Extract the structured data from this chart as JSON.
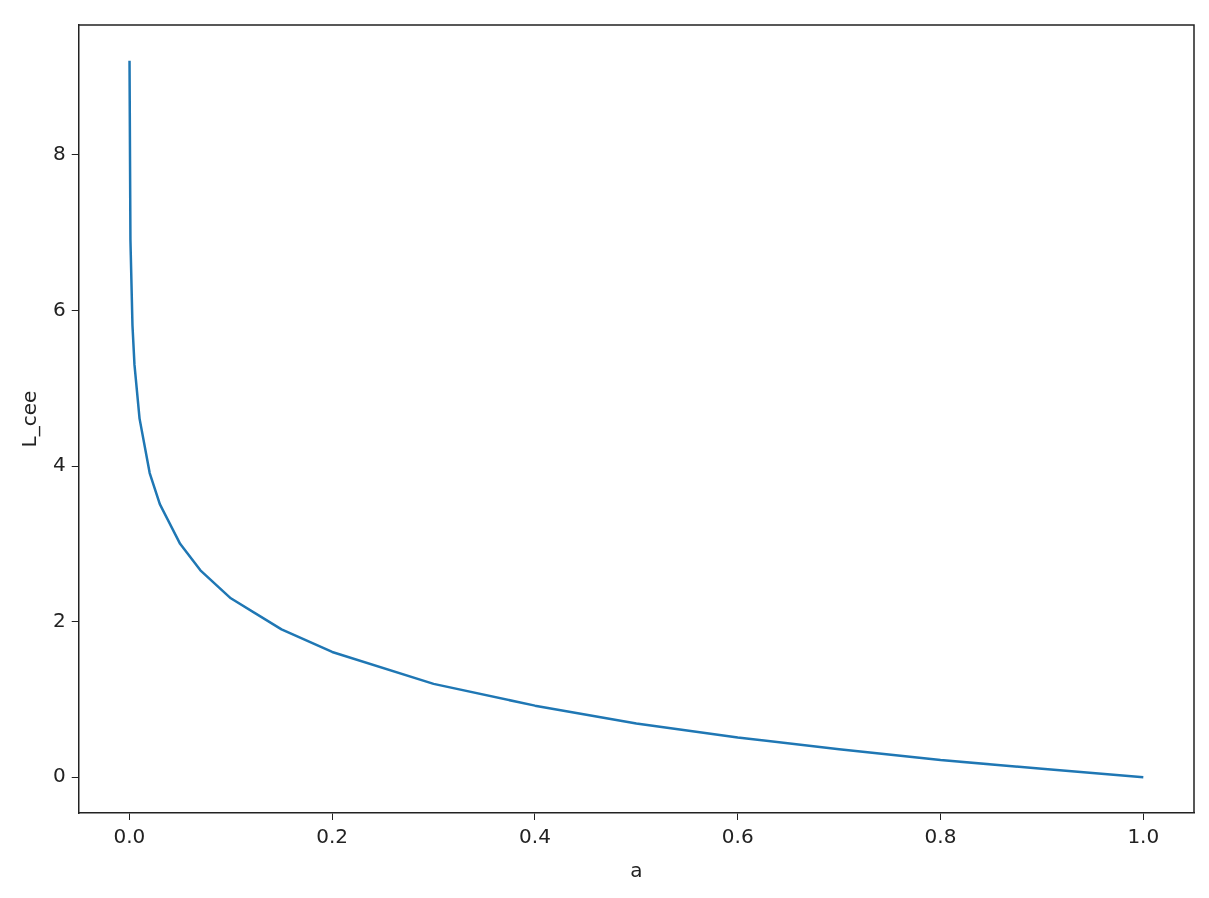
{
  "chart_data": {
    "type": "line",
    "xlabel": "a",
    "ylabel": "L_cee",
    "x": [
      0.0001,
      0.001,
      0.003,
      0.005,
      0.01,
      0.02,
      0.03,
      0.05,
      0.07,
      0.1,
      0.15,
      0.2,
      0.3,
      0.4,
      0.5,
      0.6,
      0.7,
      0.8,
      0.9,
      1.0
    ],
    "series": [
      {
        "color": "#1f77b4",
        "values": [
          9.21,
          6.91,
          5.81,
          5.3,
          4.61,
          3.91,
          3.51,
          3.0,
          2.66,
          2.3,
          1.9,
          1.61,
          1.2,
          0.92,
          0.69,
          0.51,
          0.36,
          0.22,
          0.11,
          0
        ]
      }
    ],
    "xlim": [
      -0.05,
      1.05
    ],
    "ylim": [
      -0.46,
      9.67
    ],
    "xticks": [
      {
        "value": 0,
        "label": "0.0"
      },
      {
        "value": 0.2,
        "label": "0.2"
      },
      {
        "value": 0.4,
        "label": "0.4"
      },
      {
        "value": 0.6,
        "label": "0.6"
      },
      {
        "value": 0.8,
        "label": "0.8"
      },
      {
        "value": 1,
        "label": "1.0"
      }
    ],
    "yticks": [
      0,
      2,
      4,
      6,
      8
    ]
  }
}
